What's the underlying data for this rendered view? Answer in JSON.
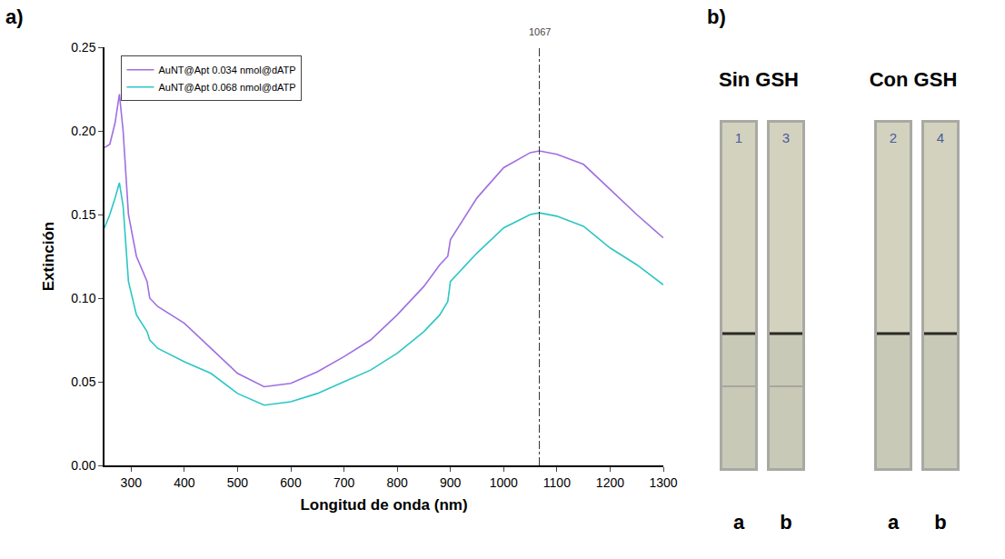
{
  "figure": {
    "panel_labels": [
      "a)",
      "b)"
    ]
  },
  "chart_data": {
    "type": "line",
    "x_label": "Longitud de onda (nm)",
    "y_label": "Extinción",
    "xlim": [
      250,
      1300
    ],
    "xticks": [
      300,
      400,
      500,
      600,
      700,
      800,
      900,
      1000,
      1100,
      1200,
      1300
    ],
    "ylim": [
      0,
      0.25
    ],
    "yticks": [
      {
        "value": 0,
        "label": "0.00"
      },
      {
        "value": 0.05,
        "label": "0.05"
      },
      {
        "value": 0.1,
        "label": "0.10"
      },
      {
        "value": 0.15,
        "label": "0.15"
      },
      {
        "value": 0.2,
        "label": "0.20"
      },
      {
        "value": 0.25,
        "label": "0.25"
      }
    ],
    "grid": false,
    "legend": "upper left",
    "x": [
      250,
      260,
      270,
      278,
      285,
      295,
      310,
      330,
      335,
      350,
      400,
      450,
      500,
      550,
      600,
      650,
      700,
      750,
      800,
      850,
      880,
      895,
      900,
      950,
      1000,
      1050,
      1067,
      1100,
      1150,
      1200,
      1250,
      1300
    ],
    "series": [
      {
        "name": "AuNT@Apt 0.034 nmol@dATP",
        "color": "#a06ee0",
        "values": [
          0.19,
          0.192,
          0.205,
          0.222,
          0.2,
          0.15,
          0.125,
          0.11,
          0.1,
          0.095,
          0.085,
          0.07,
          0.055,
          0.047,
          0.049,
          0.056,
          0.065,
          0.075,
          0.09,
          0.107,
          0.12,
          0.125,
          0.135,
          0.16,
          0.178,
          0.187,
          0.188,
          0.186,
          0.18,
          0.165,
          0.15,
          0.136
        ]
      },
      {
        "name": "AuNT@Apt 0.068 nmol@dATP",
        "color": "#2cc6c6",
        "values": [
          0.142,
          0.15,
          0.16,
          0.169,
          0.155,
          0.11,
          0.09,
          0.08,
          0.075,
          0.07,
          0.062,
          0.055,
          0.043,
          0.036,
          0.038,
          0.043,
          0.05,
          0.057,
          0.067,
          0.08,
          0.09,
          0.098,
          0.11,
          0.127,
          0.142,
          0.15,
          0.151,
          0.149,
          0.143,
          0.13,
          0.12,
          0.108
        ]
      }
    ],
    "annotations": [
      {
        "text": "1067",
        "x": 1067
      }
    ]
  },
  "strips": {
    "groups": [
      {
        "title": "Sin GSH",
        "strips": [
          {
            "label": "a",
            "mark": "1",
            "test_line": true
          },
          {
            "label": "b",
            "mark": "3",
            "test_line": true
          }
        ]
      },
      {
        "title": "Con GSH",
        "strips": [
          {
            "label": "a",
            "mark": "2",
            "test_line": false
          },
          {
            "label": "b",
            "mark": "4",
            "test_line": false
          }
        ]
      }
    ]
  }
}
